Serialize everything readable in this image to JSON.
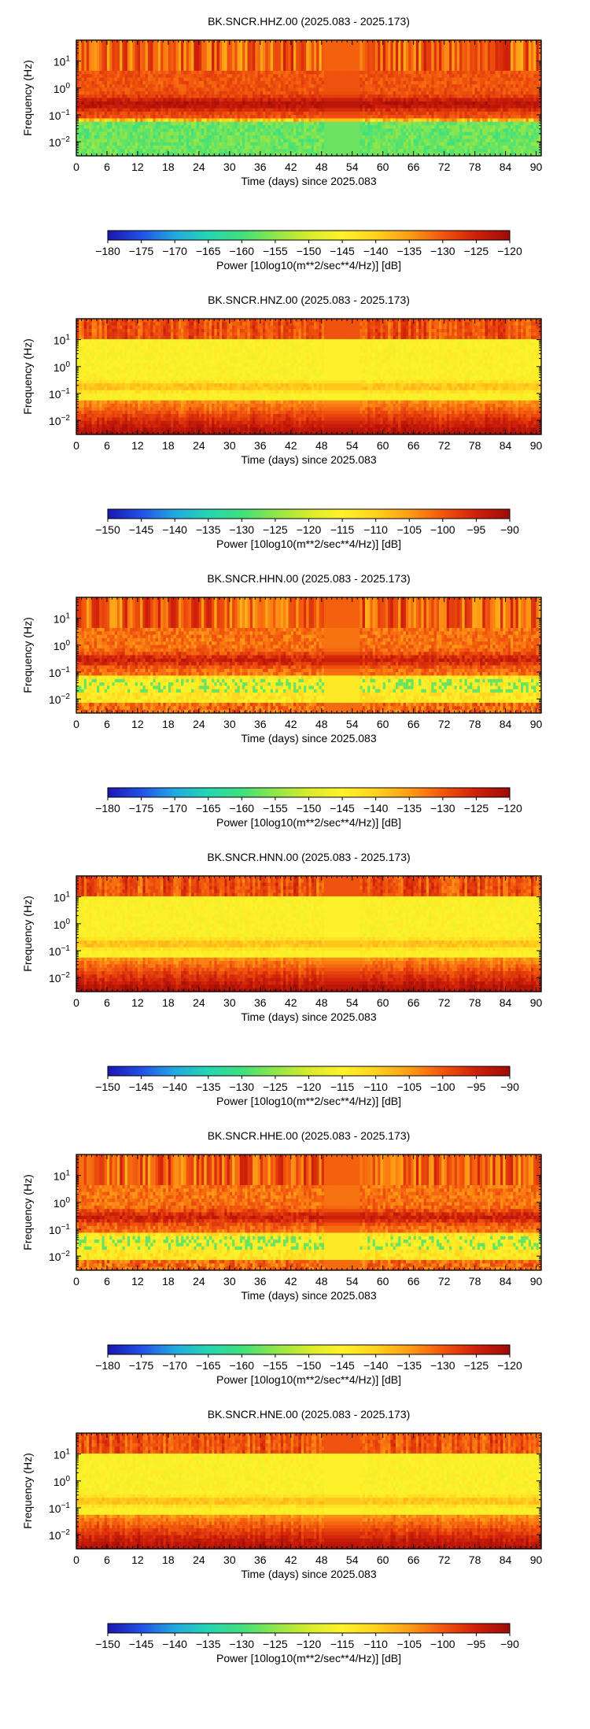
{
  "chart_data": [
    {
      "type": "heatmap",
      "title": "BK.SNCR.HHZ.00 (2025.083 - 2025.173)",
      "xlabel": "Time (days) since 2025.083",
      "ylabel": "Frequency (Hz)",
      "xlim": [
        0,
        91
      ],
      "x_ticks": [
        "0",
        "6",
        "12",
        "18",
        "24",
        "30",
        "36",
        "42",
        "48",
        "54",
        "60",
        "66",
        "72",
        "78",
        "84",
        "90"
      ],
      "ylim_hz": [
        0.003,
        60
      ],
      "y_scale": "log",
      "y_ticks": [
        {
          "base": "10",
          "exp": "1",
          "value": 10
        },
        {
          "base": "10",
          "exp": "0",
          "value": 1
        },
        {
          "base": "10",
          "exp": "−1",
          "value": 0.1
        },
        {
          "base": "10",
          "exp": "−2",
          "value": 0.01
        }
      ],
      "colorbar": {
        "label": "Power [10log10(m**2/sec**4/Hz)] [dB]",
        "min": -180,
        "max": -120,
        "ticks": [
          "−180",
          "−175",
          "−170",
          "−165",
          "−160",
          "−155",
          "−150",
          "−145",
          "−140",
          "−135",
          "−130",
          "−125",
          "−120"
        ],
        "colormap": [
          "#1a17b0",
          "#2150e6",
          "#22a9e0",
          "#25d6b0",
          "#3fe07c",
          "#8fe64a",
          "#d6ec2c",
          "#fff22a",
          "#ffd21e",
          "#ff9d16",
          "#f2560e",
          "#cf1f0a",
          "#9e0c08"
        ]
      },
      "pattern": "low_band"
    },
    {
      "type": "heatmap",
      "title": "BK.SNCR.HNZ.00 (2025.083 - 2025.173)",
      "xlabel": "Time (days) since 2025.083",
      "ylabel": "Frequency (Hz)",
      "xlim": [
        0,
        91
      ],
      "x_ticks": [
        "0",
        "6",
        "12",
        "18",
        "24",
        "30",
        "36",
        "42",
        "48",
        "54",
        "60",
        "66",
        "72",
        "78",
        "84",
        "90"
      ],
      "ylim_hz": [
        0.003,
        60
      ],
      "y_scale": "log",
      "y_ticks": [
        {
          "base": "10",
          "exp": "1",
          "value": 10
        },
        {
          "base": "10",
          "exp": "0",
          "value": 1
        },
        {
          "base": "10",
          "exp": "−1",
          "value": 0.1
        },
        {
          "base": "10",
          "exp": "−2",
          "value": 0.01
        }
      ],
      "colorbar": {
        "label": "Power [10log10(m**2/sec**4/Hz)] [dB]",
        "min": -150,
        "max": -90,
        "ticks": [
          "−150",
          "−145",
          "−140",
          "−135",
          "−130",
          "−125",
          "−120",
          "−115",
          "−110",
          "−105",
          "−100",
          "−95",
          "−90"
        ],
        "colormap": [
          "#1a17b0",
          "#2150e6",
          "#22a9e0",
          "#25d6b0",
          "#3fe07c",
          "#8fe64a",
          "#d6ec2c",
          "#fff22a",
          "#ffd21e",
          "#ff9d16",
          "#f2560e",
          "#cf1f0a",
          "#9e0c08"
        ]
      },
      "pattern": "accel"
    },
    {
      "type": "heatmap",
      "title": "BK.SNCR.HHN.00 (2025.083 - 2025.173)",
      "xlabel": "Time (days) since 2025.083",
      "ylabel": "Frequency (Hz)",
      "xlim": [
        0,
        91
      ],
      "x_ticks": [
        "0",
        "6",
        "12",
        "18",
        "24",
        "30",
        "36",
        "42",
        "48",
        "54",
        "60",
        "66",
        "72",
        "78",
        "84",
        "90"
      ],
      "ylim_hz": [
        0.003,
        60
      ],
      "y_scale": "log",
      "y_ticks": [
        {
          "base": "10",
          "exp": "1",
          "value": 10
        },
        {
          "base": "10",
          "exp": "0",
          "value": 1
        },
        {
          "base": "10",
          "exp": "−1",
          "value": 0.1
        },
        {
          "base": "10",
          "exp": "−2",
          "value": 0.01
        }
      ],
      "colorbar": {
        "label": "Power [10log10(m**2/sec**4/Hz)] [dB]",
        "min": -180,
        "max": -120,
        "ticks": [
          "−180",
          "−175",
          "−170",
          "−165",
          "−160",
          "−155",
          "−150",
          "−145",
          "−140",
          "−135",
          "−130",
          "−125",
          "−120"
        ],
        "colormap": [
          "#1a17b0",
          "#2150e6",
          "#22a9e0",
          "#25d6b0",
          "#3fe07c",
          "#8fe64a",
          "#d6ec2c",
          "#fff22a",
          "#ffd21e",
          "#ff9d16",
          "#f2560e",
          "#cf1f0a",
          "#9e0c08"
        ]
      },
      "pattern": "horiz"
    },
    {
      "type": "heatmap",
      "title": "BK.SNCR.HNN.00 (2025.083 - 2025.173)",
      "xlabel": "Time (days) since 2025.083",
      "ylabel": "Frequency (Hz)",
      "xlim": [
        0,
        91
      ],
      "x_ticks": [
        "0",
        "6",
        "12",
        "18",
        "24",
        "30",
        "36",
        "42",
        "48",
        "54",
        "60",
        "66",
        "72",
        "78",
        "84",
        "90"
      ],
      "ylim_hz": [
        0.003,
        60
      ],
      "y_scale": "log",
      "y_ticks": [
        {
          "base": "10",
          "exp": "1",
          "value": 10
        },
        {
          "base": "10",
          "exp": "0",
          "value": 1
        },
        {
          "base": "10",
          "exp": "−1",
          "value": 0.1
        },
        {
          "base": "10",
          "exp": "−2",
          "value": 0.01
        }
      ],
      "colorbar": {
        "label": "Power [10log10(m**2/sec**4/Hz)] [dB]",
        "min": -150,
        "max": -90,
        "ticks": [
          "−150",
          "−145",
          "−140",
          "−135",
          "−130",
          "−125",
          "−120",
          "−115",
          "−110",
          "−105",
          "−100",
          "−95",
          "−90"
        ],
        "colormap": [
          "#1a17b0",
          "#2150e6",
          "#22a9e0",
          "#25d6b0",
          "#3fe07c",
          "#8fe64a",
          "#d6ec2c",
          "#fff22a",
          "#ffd21e",
          "#ff9d16",
          "#f2560e",
          "#cf1f0a",
          "#9e0c08"
        ]
      },
      "pattern": "accel"
    },
    {
      "type": "heatmap",
      "title": "BK.SNCR.HHE.00 (2025.083 - 2025.173)",
      "xlabel": "Time (days) since 2025.083",
      "ylabel": "Frequency (Hz)",
      "xlim": [
        0,
        91
      ],
      "x_ticks": [
        "0",
        "6",
        "12",
        "18",
        "24",
        "30",
        "36",
        "42",
        "48",
        "54",
        "60",
        "66",
        "72",
        "78",
        "84",
        "90"
      ],
      "ylim_hz": [
        0.003,
        60
      ],
      "y_scale": "log",
      "y_ticks": [
        {
          "base": "10",
          "exp": "1",
          "value": 10
        },
        {
          "base": "10",
          "exp": "0",
          "value": 1
        },
        {
          "base": "10",
          "exp": "−1",
          "value": 0.1
        },
        {
          "base": "10",
          "exp": "−2",
          "value": 0.01
        }
      ],
      "colorbar": {
        "label": "Power [10log10(m**2/sec**4/Hz)] [dB]",
        "min": -180,
        "max": -120,
        "ticks": [
          "−180",
          "−175",
          "−170",
          "−165",
          "−160",
          "−155",
          "−150",
          "−145",
          "−140",
          "−135",
          "−130",
          "−125",
          "−120"
        ],
        "colormap": [
          "#1a17b0",
          "#2150e6",
          "#22a9e0",
          "#25d6b0",
          "#3fe07c",
          "#8fe64a",
          "#d6ec2c",
          "#fff22a",
          "#ffd21e",
          "#ff9d16",
          "#f2560e",
          "#cf1f0a",
          "#9e0c08"
        ]
      },
      "pattern": "horiz"
    },
    {
      "type": "heatmap",
      "title": "BK.SNCR.HNE.00 (2025.083 - 2025.173)",
      "xlabel": "Time (days) since 2025.083",
      "ylabel": "Frequency (Hz)",
      "xlim": [
        0,
        91
      ],
      "x_ticks": [
        "0",
        "6",
        "12",
        "18",
        "24",
        "30",
        "36",
        "42",
        "48",
        "54",
        "60",
        "66",
        "72",
        "78",
        "84",
        "90"
      ],
      "ylim_hz": [
        0.003,
        60
      ],
      "y_scale": "log",
      "y_ticks": [
        {
          "base": "10",
          "exp": "1",
          "value": 10
        },
        {
          "base": "10",
          "exp": "0",
          "value": 1
        },
        {
          "base": "10",
          "exp": "−1",
          "value": 0.1
        },
        {
          "base": "10",
          "exp": "−2",
          "value": 0.01
        }
      ],
      "colorbar": {
        "label": "Power [10log10(m**2/sec**4/Hz)] [dB]",
        "min": -150,
        "max": -90,
        "ticks": [
          "−150",
          "−145",
          "−140",
          "−135",
          "−130",
          "−125",
          "−120",
          "−115",
          "−110",
          "−105",
          "−100",
          "−95",
          "−90"
        ],
        "colormap": [
          "#1a17b0",
          "#2150e6",
          "#22a9e0",
          "#25d6b0",
          "#3fe07c",
          "#8fe64a",
          "#d6ec2c",
          "#fff22a",
          "#ffd21e",
          "#ff9d16",
          "#f2560e",
          "#cf1f0a",
          "#9e0c08"
        ]
      },
      "pattern": "accel"
    }
  ]
}
